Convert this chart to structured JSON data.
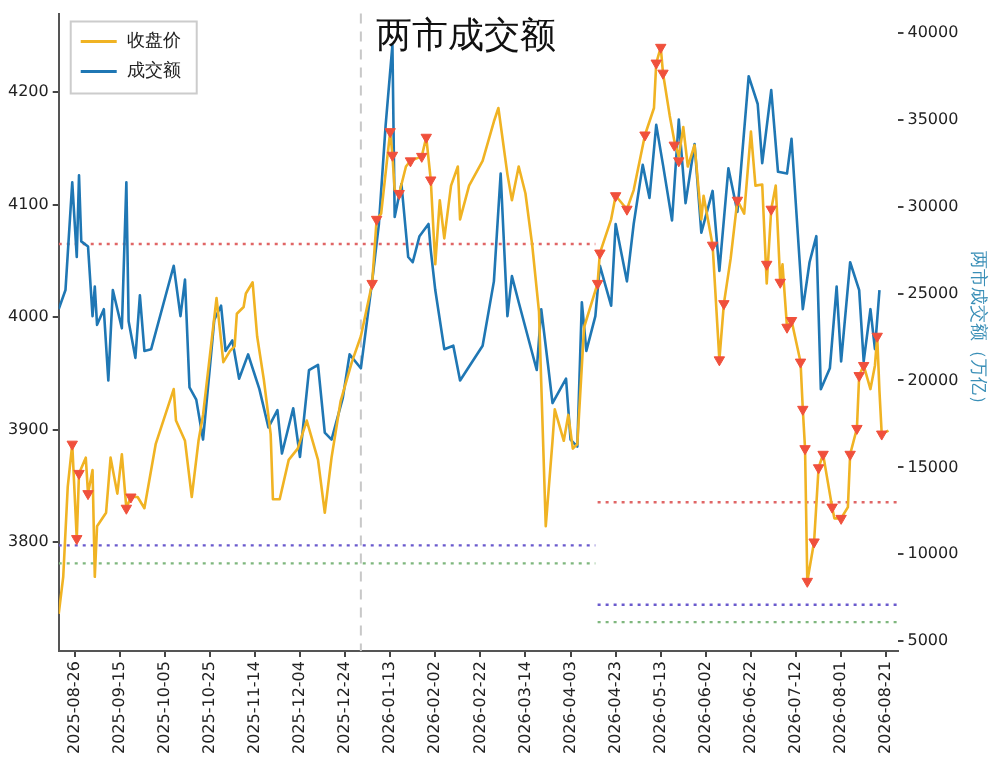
{
  "chart_data": {
    "type": "line",
    "title": "两市成交额",
    "y2label": "两市成交额（万亿）",
    "xlim": [
      "2025-08-19",
      "2026-08-26"
    ],
    "xticks": [
      "2025-08-26",
      "2025-09-15",
      "2025-10-05",
      "2025-10-25",
      "2025-11-14",
      "2025-12-04",
      "2025-12-24",
      "2026-01-13",
      "2026-02-02",
      "2026-02-22",
      "2026-03-14",
      "2026-04-03",
      "2026-04-23",
      "2026-05-13",
      "2026-06-02",
      "2026-06-22",
      "2026-07-12",
      "2026-08-01",
      "2026-08-21"
    ],
    "ylim": [
      3703,
      4270
    ],
    "yticks": [
      3800,
      3900,
      4000,
      4100,
      4200
    ],
    "y2lim": [
      4440,
      41100
    ],
    "y2ticks": [
      5000,
      10000,
      15000,
      20000,
      25000,
      30000,
      35000,
      40000
    ],
    "legend": "top left",
    "grid": false,
    "ref_lines": [
      {
        "axis": "x",
        "value": "2025-12-31",
        "color": "#c8c8c8",
        "line_style": "dashed"
      }
    ],
    "series": [
      {
        "name": "收盘价",
        "type": "line",
        "color": "#f0b323",
        "x": [
          "2025-08-19",
          "2025-08-21",
          "2025-08-23",
          "2025-08-25",
          "2025-08-27",
          "2025-08-28",
          "2025-08-31",
          "2025-09-01",
          "2025-09-03",
          "2025-09-04",
          "2025-09-05",
          "2025-09-09",
          "2025-09-11",
          "2025-09-14",
          "2025-09-16",
          "2025-09-18",
          "2025-09-20",
          "2025-09-23",
          "2025-09-26",
          "2025-10-01",
          "2025-10-09",
          "2025-10-10",
          "2025-10-14",
          "2025-10-17",
          "2025-10-20",
          "2025-10-22",
          "2025-10-28",
          "2025-10-31",
          "2025-11-03",
          "2025-11-05",
          "2025-11-06",
          "2025-11-09",
          "2025-11-10",
          "2025-11-13",
          "2025-11-15",
          "2025-11-18",
          "2025-11-21",
          "2025-11-22",
          "2025-11-25",
          "2025-11-29",
          "2025-12-03",
          "2025-12-07",
          "2025-12-12",
          "2025-12-15",
          "2025-12-18",
          "2025-12-22",
          "2025-12-27",
          "2025-12-31",
          "2026-01-05",
          "2026-01-07",
          "2026-01-09",
          "2026-01-13",
          "2026-01-14",
          "2026-01-15",
          "2026-01-17",
          "2026-01-20",
          "2026-01-22",
          "2026-01-27",
          "2026-01-29",
          "2026-01-31",
          "2026-02-02",
          "2026-02-04",
          "2026-02-06",
          "2026-02-09",
          "2026-02-12",
          "2026-02-13",
          "2026-02-17",
          "2026-02-23",
          "2026-02-28",
          "2026-03-02",
          "2026-03-06",
          "2026-03-08",
          "2026-03-11",
          "2026-03-14",
          "2026-03-17",
          "2026-03-20",
          "2026-03-23",
          "2026-03-26",
          "2026-03-27",
          "2026-03-31",
          "2026-04-02",
          "2026-04-04",
          "2026-04-06",
          "2026-04-09",
          "2026-04-15",
          "2026-04-16",
          "2026-04-21",
          "2026-04-23",
          "2026-04-28",
          "2026-05-01",
          "2026-05-06",
          "2026-05-10",
          "2026-05-11",
          "2026-05-13",
          "2026-05-14",
          "2026-05-17",
          "2026-05-19",
          "2026-05-21",
          "2026-05-23",
          "2026-05-25",
          "2026-05-28",
          "2026-05-31",
          "2026-06-01",
          "2026-06-05",
          "2026-06-08",
          "2026-06-10",
          "2026-06-13",
          "2026-06-16",
          "2026-06-19",
          "2026-06-22",
          "2026-06-24",
          "2026-06-27",
          "2026-06-29",
          "2026-07-01",
          "2026-07-03",
          "2026-07-05",
          "2026-07-06",
          "2026-07-08",
          "2026-07-10",
          "2026-07-14",
          "2026-07-15",
          "2026-07-16",
          "2026-07-17",
          "2026-07-20",
          "2026-07-22",
          "2026-07-24",
          "2026-07-28",
          "2026-07-29",
          "2026-08-01",
          "2026-08-04",
          "2026-08-05",
          "2026-08-08",
          "2026-08-09",
          "2026-08-11",
          "2026-08-14",
          "2026-08-16",
          "2026-08-17",
          "2026-08-18",
          "2026-08-19",
          "2026-08-22"
        ],
        "values": [
          3736,
          3769,
          3849,
          3887,
          3803,
          3861,
          3875,
          3843,
          3864,
          3769,
          3814,
          3826,
          3875,
          3843,
          3878,
          3830,
          3840,
          3840,
          3830,
          3887,
          3936,
          3908,
          3890,
          3840,
          3890,
          3913,
          4017,
          3960,
          3970,
          3974,
          4003,
          4009,
          4021,
          4031,
          3983,
          3944,
          3896,
          3838,
          3838,
          3873,
          3883,
          3908,
          3873,
          3826,
          3875,
          3925,
          3960,
          3983,
          4030,
          4087,
          4092,
          4165,
          4144,
          4113,
          4110,
          4134,
          4139,
          4143,
          4160,
          4122,
          4047,
          4104,
          4070,
          4117,
          4134,
          4087,
          4117,
          4139,
          4174,
          4186,
          4127,
          4104,
          4134,
          4110,
          4064,
          4005,
          3814,
          3890,
          3918,
          3890,
          3913,
          3883,
          3887,
          3991,
          4030,
          4057,
          4087,
          4108,
          4096,
          4113,
          4162,
          4186,
          4226,
          4240,
          4217,
          4179,
          4157,
          4143,
          4169,
          4134,
          4153,
          4087,
          4108,
          4064,
          3962,
          4012,
          4052,
          4104,
          4092,
          4165,
          4117,
          4118,
          4030,
          4096,
          4117,
          4031,
          4047,
          3991,
          3997,
          3960,
          3918,
          3883,
          3765,
          3800,
          3866,
          3878,
          3831,
          3821,
          3821,
          3831,
          3878,
          3901,
          3948,
          3957,
          3936,
          3957,
          3983,
          3934,
          3896,
          3899
        ]
      },
      {
        "name": "成交额",
        "type": "line",
        "axis": "y2",
        "color": "#1f77b4",
        "x": [
          "2025-08-19",
          "2025-08-22",
          "2025-08-25",
          "2025-08-27",
          "2025-08-28",
          "2025-08-29",
          "2025-09-01",
          "2025-09-03",
          "2025-09-04",
          "2025-09-05",
          "2025-09-08",
          "2025-09-10",
          "2025-09-12",
          "2025-09-16",
          "2025-09-18",
          "2025-09-19",
          "2025-09-22",
          "2025-09-24",
          "2025-09-26",
          "2025-09-29",
          "2025-10-09",
          "2025-10-12",
          "2025-10-14",
          "2025-10-16",
          "2025-10-19",
          "2025-10-22",
          "2025-10-25",
          "2025-10-27",
          "2025-10-30",
          "2025-11-01",
          "2025-11-04",
          "2025-11-07",
          "2025-11-11",
          "2025-11-16",
          "2025-11-20",
          "2025-11-24",
          "2025-11-26",
          "2025-12-01",
          "2025-12-04",
          "2025-12-08",
          "2025-12-12",
          "2025-12-15",
          "2025-12-18",
          "2025-12-23",
          "2025-12-26",
          "2025-12-31",
          "2026-01-05",
          "2026-01-08",
          "2026-01-11",
          "2026-01-14",
          "2026-01-15",
          "2026-01-18",
          "2026-01-21",
          "2026-01-23",
          "2026-01-26",
          "2026-01-30",
          "2026-01-31",
          "2026-02-02",
          "2026-02-06",
          "2026-02-10",
          "2026-02-13",
          "2026-02-23",
          "2026-02-28",
          "2026-03-03",
          "2026-03-06",
          "2026-03-08",
          "2026-03-11",
          "2026-03-19",
          "2026-03-21",
          "2026-03-24",
          "2026-03-26",
          "2026-04-01",
          "2026-04-03",
          "2026-04-06",
          "2026-04-08",
          "2026-04-10",
          "2026-04-14",
          "2026-04-16",
          "2026-04-21",
          "2026-04-23",
          "2026-04-28",
          "2026-05-01",
          "2026-05-05",
          "2026-05-08",
          "2026-05-11",
          "2026-05-14",
          "2026-05-18",
          "2026-05-21",
          "2026-05-24",
          "2026-05-28",
          "2026-05-31",
          "2026-06-05",
          "2026-06-08",
          "2026-06-12",
          "2026-06-16",
          "2026-06-21",
          "2026-06-25",
          "2026-06-27",
          "2026-07-01",
          "2026-07-04",
          "2026-07-08",
          "2026-07-10",
          "2026-07-15",
          "2026-07-18",
          "2026-07-21",
          "2026-07-23",
          "2026-07-27",
          "2026-07-30",
          "2026-08-01",
          "2026-08-05",
          "2026-08-09",
          "2026-08-11",
          "2026-08-14",
          "2026-08-16",
          "2026-08-18"
        ],
        "values": [
          24100,
          25200,
          31400,
          27100,
          31800,
          28000,
          27700,
          23700,
          25400,
          23200,
          24100,
          20000,
          25200,
          23000,
          31400,
          23400,
          21300,
          24900,
          21700,
          21800,
          26600,
          23700,
          25800,
          19600,
          18900,
          16600,
          20700,
          23500,
          24300,
          21700,
          22300,
          20100,
          21500,
          19500,
          17300,
          18300,
          15800,
          18400,
          15600,
          20600,
          20900,
          17000,
          16600,
          19000,
          21500,
          20700,
          25700,
          29000,
          34700,
          39300,
          29400,
          31300,
          27100,
          26800,
          28300,
          29000,
          27500,
          25200,
          21800,
          22000,
          20000,
          22000,
          25700,
          31900,
          23700,
          26000,
          24500,
          20600,
          24100,
          20900,
          18700,
          20100,
          16600,
          16200,
          24500,
          21700,
          23700,
          26600,
          24300,
          29000,
          25700,
          29000,
          32400,
          30500,
          34700,
          32400,
          29200,
          35000,
          30200,
          33600,
          28500,
          30900,
          26300,
          32200,
          29700,
          37500,
          35900,
          32500,
          36700,
          32000,
          31900,
          33900,
          24100,
          26800,
          28300,
          19500,
          20700,
          25400,
          21100,
          26800,
          25200,
          21100,
          24100,
          21800,
          25200
        ]
      },
      {
        "type": "scatter",
        "marker": "triangle",
        "color": "#f0503c",
        "x": [
          "2025-08-25",
          "2025-08-27",
          "2025-08-28",
          "2025-09-01",
          "2025-09-18",
          "2025-09-20",
          "2026-01-05",
          "2026-01-07",
          "2026-01-13",
          "2026-01-14",
          "2026-01-17",
          "2026-01-22",
          "2026-01-27",
          "2026-01-29",
          "2026-01-31",
          "2026-04-15",
          "2026-04-16",
          "2026-04-23",
          "2026-04-28",
          "2026-05-06",
          "2026-05-11",
          "2026-05-13",
          "2026-05-14",
          "2026-05-19",
          "2026-05-21",
          "2026-06-05",
          "2026-06-08",
          "2026-06-10",
          "2026-06-16",
          "2026-06-29",
          "2026-07-01",
          "2026-07-05",
          "2026-07-08",
          "2026-07-10",
          "2026-07-14",
          "2026-07-15",
          "2026-07-16",
          "2026-07-17",
          "2026-07-20",
          "2026-07-22",
          "2026-07-24",
          "2026-07-28",
          "2026-08-01",
          "2026-08-05",
          "2026-08-08",
          "2026-08-09",
          "2026-08-11",
          "2026-08-17",
          "2026-08-19"
        ],
        "values": [
          3887,
          3803,
          3861,
          3843,
          3830,
          3840,
          4030,
          4087,
          4165,
          4144,
          4110,
          4139,
          4143,
          4160,
          4122,
          4030,
          4057,
          4108,
          4096,
          4162,
          4226,
          4240,
          4217,
          4153,
          4139,
          4064,
          3962,
          4012,
          4104,
          4047,
          4096,
          4031,
          3991,
          3997,
          3960,
          3918,
          3883,
          3765,
          3800,
          3866,
          3878,
          3831,
          3821,
          3878,
          3901,
          3948,
          3957,
          3983,
          3896
        ]
      },
      {
        "type": "line",
        "line_style": "dotted",
        "color": "#e06666",
        "x": [
          "2025-08-19",
          "2026-04-14"
        ],
        "values": [
          4065,
          4065
        ]
      },
      {
        "type": "line",
        "line_style": "dotted",
        "color": "#6a5acd",
        "x": [
          "2025-08-19",
          "2026-04-14"
        ],
        "values": [
          3797,
          3797
        ]
      },
      {
        "type": "line",
        "line_style": "dotted",
        "color": "#7fb77e",
        "x": [
          "2025-08-19",
          "2026-04-14"
        ],
        "values": [
          3781,
          3781
        ]
      },
      {
        "type": "line",
        "line_style": "dotted",
        "axis": "y2",
        "color": "#e06666",
        "x": [
          "2026-04-15",
          "2026-08-26"
        ],
        "values": [
          13000,
          13000
        ]
      },
      {
        "type": "line",
        "line_style": "dotted",
        "axis": "y2",
        "color": "#6a5acd",
        "x": [
          "2026-04-15",
          "2026-08-26"
        ],
        "values": [
          7100,
          7100
        ]
      },
      {
        "type": "line",
        "line_style": "dotted",
        "axis": "y2",
        "color": "#7fb77e",
        "x": [
          "2026-04-15",
          "2026-08-26"
        ],
        "values": [
          6100,
          6100
        ]
      }
    ]
  }
}
